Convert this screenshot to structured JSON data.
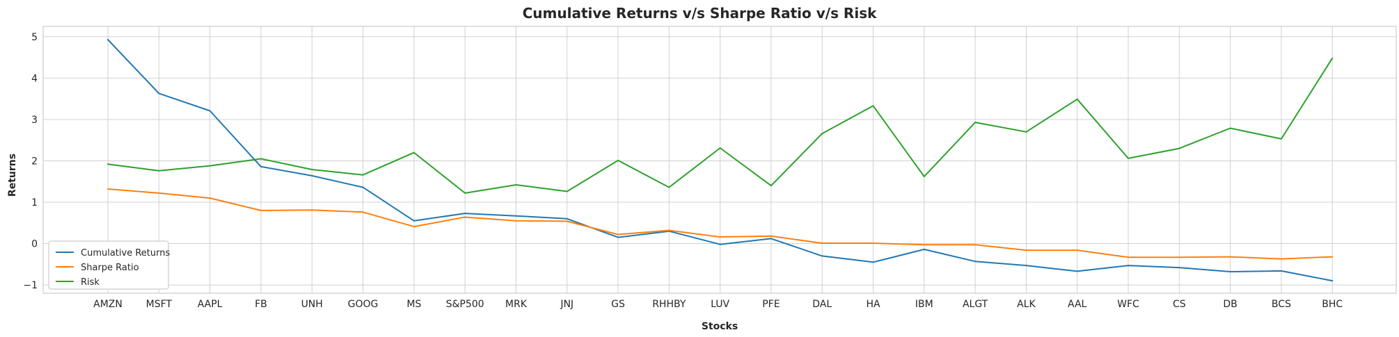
{
  "chart_data": {
    "type": "line",
    "title": "Cumulative Returns v/s Sharpe Ratio v/s Risk",
    "xlabel": "Stocks",
    "ylabel": "Returns",
    "categories": [
      "AMZN",
      "MSFT",
      "AAPL",
      "FB",
      "UNH",
      "GOOG",
      "MS",
      "S&P500",
      "MRK",
      "JNJ",
      "GS",
      "RHHBY",
      "LUV",
      "PFE",
      "DAL",
      "HA",
      "IBM",
      "ALGT",
      "ALK",
      "AAL",
      "WFC",
      "CS",
      "DB",
      "BCS",
      "BHC"
    ],
    "yticks": [
      "−1",
      "0",
      "1",
      "2",
      "3",
      "4",
      "5"
    ],
    "ytick_values": [
      -1,
      0,
      1,
      2,
      3,
      4,
      5
    ],
    "ylim": [
      -1.2,
      5.25
    ],
    "grid": true,
    "legend_position": "lower-left",
    "series": [
      {
        "name": "Cumulative Returns",
        "color": "#1f77b4",
        "values": [
          4.93,
          3.63,
          3.21,
          1.86,
          1.64,
          1.36,
          0.55,
          0.73,
          0.67,
          0.6,
          0.15,
          0.3,
          -0.02,
          0.12,
          -0.3,
          -0.45,
          -0.14,
          -0.43,
          -0.53,
          -0.67,
          -0.53,
          -0.58,
          -0.68,
          -0.66,
          -0.9
        ]
      },
      {
        "name": "Sharpe Ratio",
        "color": "#ff7f0e",
        "values": [
          1.32,
          1.22,
          1.1,
          0.8,
          0.81,
          0.76,
          0.41,
          0.64,
          0.55,
          0.54,
          0.22,
          0.32,
          0.16,
          0.18,
          0.01,
          0.01,
          -0.03,
          -0.03,
          -0.16,
          -0.16,
          -0.33,
          -0.33,
          -0.32,
          -0.37,
          -0.32
        ]
      },
      {
        "name": "Risk",
        "color": "#2ca02c",
        "values": [
          1.92,
          1.76,
          1.88,
          2.05,
          1.79,
          1.66,
          2.2,
          1.22,
          1.42,
          1.26,
          2.01,
          1.36,
          2.31,
          1.4,
          2.66,
          3.33,
          1.62,
          2.93,
          2.7,
          3.49,
          2.06,
          2.3,
          2.79,
          2.53,
          4.48
        ]
      }
    ]
  }
}
